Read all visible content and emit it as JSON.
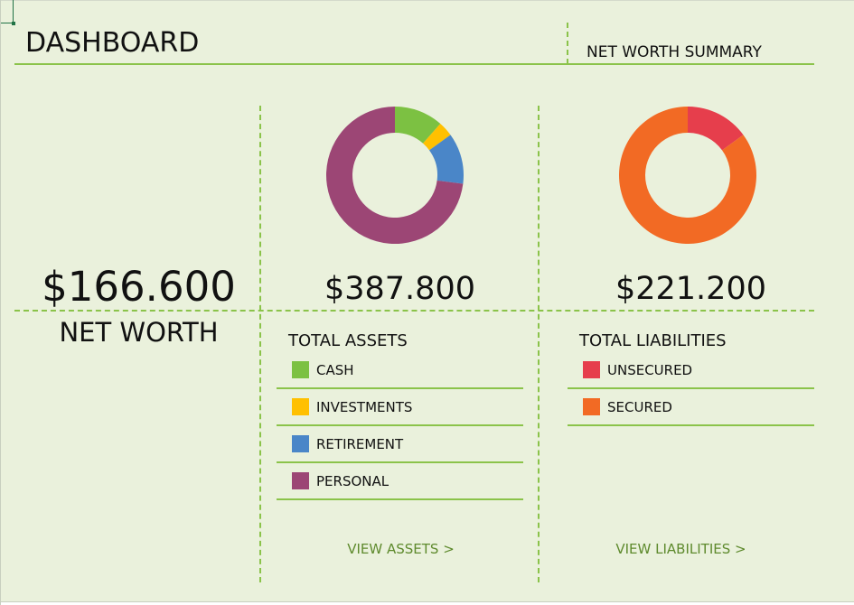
{
  "header": {
    "title": "DASHBOARD",
    "summary_label": "NET WORTH SUMMARY"
  },
  "net_worth": {
    "amount": "$166.600",
    "label": "NET WORTH"
  },
  "assets": {
    "total_amount": "$387.800",
    "section_title": "TOTAL ASSETS",
    "view_link": "VIEW ASSETS >",
    "items": [
      {
        "label": "CASH",
        "color": "#7cc142"
      },
      {
        "label": "INVESTMENTS",
        "color": "#ffc000"
      },
      {
        "label": "RETIREMENT",
        "color": "#4a86c8"
      },
      {
        "label": "PERSONAL",
        "color": "#9c4675"
      }
    ]
  },
  "liabilities": {
    "total_amount": "$221.200",
    "section_title": "TOTAL LIABILITIES",
    "view_link": "VIEW LIABILITIES >",
    "items": [
      {
        "label": "UNSECURED",
        "color": "#e63e4c"
      },
      {
        "label": "SECURED",
        "color": "#f26a24"
      }
    ]
  },
  "chart_data": [
    {
      "type": "pie",
      "categories": [
        "CASH",
        "INVESTMENTS",
        "RETIREMENT",
        "PERSONAL"
      ],
      "values": [
        0.115,
        0.035,
        0.12,
        0.73
      ],
      "colors": [
        "#7cc142",
        "#ffc000",
        "#4a86c8",
        "#9c4675"
      ]
    },
    {
      "type": "pie",
      "categories": [
        "UNSECURED",
        "SECURED"
      ],
      "values": [
        0.15,
        0.85
      ],
      "colors": [
        "#e63e4c",
        "#f26a24"
      ]
    }
  ]
}
